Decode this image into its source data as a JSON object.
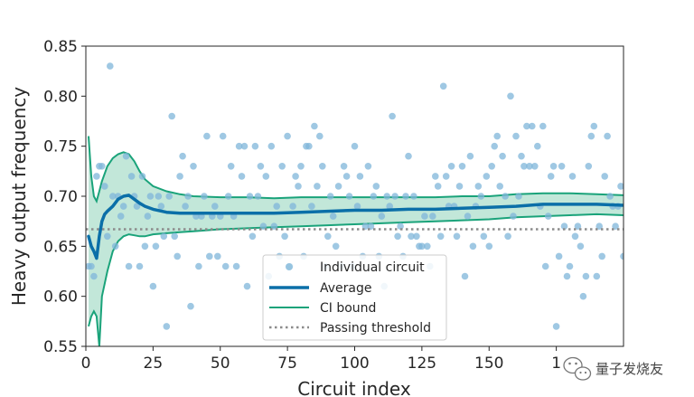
{
  "chart_data": {
    "type": "scatter",
    "xlabel": "Circuit index",
    "ylabel": "Heavy output frequency",
    "xlim": [
      0,
      200
    ],
    "ylim": [
      0.55,
      0.85
    ],
    "xticks": [
      "0",
      "25",
      "50",
      "75",
      "100",
      "125",
      "150",
      "1"
    ],
    "yticks": [
      "0.55",
      "0.60",
      "0.65",
      "0.70",
      "0.75",
      "0.80",
      "0.85"
    ],
    "grid": false,
    "legend_position": "bottom-center",
    "colors": {
      "points": "#7fb6d9",
      "average": "#0b6fa8",
      "ci": "#1aa37a",
      "ci_fill": "#b7e3d2",
      "threshold": "#8c8c8c"
    },
    "threshold": 0.667,
    "series": [
      {
        "name": "Individual circuit",
        "kind": "scatter",
        "points": [
          [
            1,
            0.63
          ],
          [
            2,
            0.63
          ],
          [
            3,
            0.62
          ],
          [
            4,
            0.72
          ],
          [
            5,
            0.73
          ],
          [
            6,
            0.73
          ],
          [
            7,
            0.71
          ],
          [
            8,
            0.66
          ],
          [
            9,
            0.83
          ],
          [
            10,
            0.7
          ],
          [
            11,
            0.65
          ],
          [
            12,
            0.7
          ],
          [
            13,
            0.68
          ],
          [
            14,
            0.69
          ],
          [
            15,
            0.74
          ],
          [
            16,
            0.63
          ],
          [
            17,
            0.72
          ],
          [
            18,
            0.7
          ],
          [
            19,
            0.69
          ],
          [
            20,
            0.63
          ],
          [
            21,
            0.72
          ],
          [
            22,
            0.65
          ],
          [
            23,
            0.68
          ],
          [
            24,
            0.7
          ],
          [
            25,
            0.61
          ],
          [
            26,
            0.65
          ],
          [
            27,
            0.7
          ],
          [
            28,
            0.69
          ],
          [
            29,
            0.66
          ],
          [
            30,
            0.57
          ],
          [
            31,
            0.7
          ],
          [
            32,
            0.78
          ],
          [
            33,
            0.66
          ],
          [
            34,
            0.64
          ],
          [
            35,
            0.72
          ],
          [
            36,
            0.74
          ],
          [
            37,
            0.69
          ],
          [
            38,
            0.7
          ],
          [
            39,
            0.59
          ],
          [
            40,
            0.73
          ],
          [
            41,
            0.68
          ],
          [
            42,
            0.63
          ],
          [
            43,
            0.68
          ],
          [
            44,
            0.7
          ],
          [
            45,
            0.76
          ],
          [
            46,
            0.64
          ],
          [
            47,
            0.68
          ],
          [
            48,
            0.69
          ],
          [
            49,
            0.64
          ],
          [
            50,
            0.68
          ],
          [
            51,
            0.76
          ],
          [
            52,
            0.63
          ],
          [
            53,
            0.7
          ],
          [
            54,
            0.73
          ],
          [
            55,
            0.68
          ],
          [
            56,
            0.63
          ],
          [
            57,
            0.75
          ],
          [
            58,
            0.72
          ],
          [
            59,
            0.75
          ],
          [
            60,
            0.61
          ],
          [
            61,
            0.7
          ],
          [
            62,
            0.66
          ],
          [
            63,
            0.75
          ],
          [
            64,
            0.7
          ],
          [
            65,
            0.73
          ],
          [
            66,
            0.67
          ],
          [
            67,
            0.72
          ],
          [
            68,
            0.62
          ],
          [
            69,
            0.75
          ],
          [
            70,
            0.67
          ],
          [
            71,
            0.69
          ],
          [
            72,
            0.64
          ],
          [
            73,
            0.73
          ],
          [
            74,
            0.66
          ],
          [
            75,
            0.76
          ],
          [
            76,
            0.63
          ],
          [
            77,
            0.69
          ],
          [
            78,
            0.72
          ],
          [
            79,
            0.71
          ],
          [
            80,
            0.73
          ],
          [
            81,
            0.64
          ],
          [
            82,
            0.75
          ],
          [
            83,
            0.75
          ],
          [
            84,
            0.69
          ],
          [
            85,
            0.77
          ],
          [
            86,
            0.71
          ],
          [
            87,
            0.76
          ],
          [
            88,
            0.73
          ],
          [
            89,
            0.63
          ],
          [
            90,
            0.66
          ],
          [
            91,
            0.7
          ],
          [
            92,
            0.68
          ],
          [
            93,
            0.65
          ],
          [
            94,
            0.71
          ],
          [
            95,
            0.63
          ],
          [
            96,
            0.73
          ],
          [
            97,
            0.72
          ],
          [
            98,
            0.7
          ],
          [
            99,
            0.63
          ],
          [
            100,
            0.75
          ],
          [
            101,
            0.69
          ],
          [
            102,
            0.72
          ],
          [
            103,
            0.64
          ],
          [
            104,
            0.67
          ],
          [
            105,
            0.73
          ],
          [
            106,
            0.67
          ],
          [
            107,
            0.7
          ],
          [
            108,
            0.71
          ],
          [
            109,
            0.64
          ],
          [
            110,
            0.68
          ],
          [
            111,
            0.61
          ],
          [
            112,
            0.7
          ],
          [
            113,
            0.69
          ],
          [
            114,
            0.78
          ],
          [
            115,
            0.7
          ],
          [
            116,
            0.66
          ],
          [
            117,
            0.67
          ],
          [
            118,
            0.64
          ],
          [
            119,
            0.7
          ],
          [
            120,
            0.74
          ],
          [
            121,
            0.66
          ],
          [
            122,
            0.7
          ],
          [
            123,
            0.66
          ],
          [
            124,
            0.65
          ],
          [
            125,
            0.65
          ],
          [
            126,
            0.68
          ],
          [
            127,
            0.65
          ],
          [
            128,
            0.63
          ],
          [
            129,
            0.68
          ],
          [
            130,
            0.72
          ],
          [
            131,
            0.71
          ],
          [
            132,
            0.66
          ],
          [
            133,
            0.81
          ],
          [
            134,
            0.72
          ],
          [
            135,
            0.69
          ],
          [
            136,
            0.73
          ],
          [
            137,
            0.69
          ],
          [
            138,
            0.66
          ],
          [
            139,
            0.71
          ],
          [
            140,
            0.73
          ],
          [
            141,
            0.62
          ],
          [
            142,
            0.68
          ],
          [
            143,
            0.74
          ],
          [
            144,
            0.65
          ],
          [
            145,
            0.69
          ],
          [
            146,
            0.71
          ],
          [
            147,
            0.7
          ],
          [
            148,
            0.66
          ],
          [
            149,
            0.72
          ],
          [
            150,
            0.65
          ],
          [
            151,
            0.73
          ],
          [
            152,
            0.75
          ],
          [
            153,
            0.76
          ],
          [
            154,
            0.71
          ],
          [
            155,
            0.74
          ],
          [
            156,
            0.7
          ],
          [
            157,
            0.66
          ],
          [
            158,
            0.8
          ],
          [
            159,
            0.68
          ],
          [
            160,
            0.76
          ],
          [
            161,
            0.7
          ],
          [
            162,
            0.74
          ],
          [
            163,
            0.73
          ],
          [
            164,
            0.77
          ],
          [
            165,
            0.73
          ],
          [
            166,
            0.77
          ],
          [
            167,
            0.73
          ],
          [
            168,
            0.75
          ],
          [
            169,
            0.69
          ],
          [
            170,
            0.77
          ],
          [
            171,
            0.63
          ],
          [
            172,
            0.68
          ],
          [
            173,
            0.72
          ],
          [
            174,
            0.73
          ],
          [
            175,
            0.57
          ],
          [
            176,
            0.64
          ],
          [
            177,
            0.73
          ],
          [
            178,
            0.67
          ],
          [
            179,
            0.62
          ],
          [
            180,
            0.63
          ],
          [
            181,
            0.72
          ],
          [
            182,
            0.66
          ],
          [
            183,
            0.67
          ],
          [
            184,
            0.65
          ],
          [
            185,
            0.6
          ],
          [
            186,
            0.62
          ],
          [
            187,
            0.73
          ],
          [
            188,
            0.76
          ],
          [
            189,
            0.77
          ],
          [
            190,
            0.62
          ],
          [
            191,
            0.67
          ],
          [
            192,
            0.64
          ],
          [
            193,
            0.72
          ],
          [
            194,
            0.76
          ],
          [
            195,
            0.7
          ],
          [
            196,
            0.69
          ],
          [
            197,
            0.67
          ],
          [
            198,
            0.69
          ],
          [
            199,
            0.71
          ],
          [
            200,
            0.64
          ]
        ]
      },
      {
        "name": "Average",
        "kind": "line",
        "points": [
          [
            1,
            0.66
          ],
          [
            2,
            0.65
          ],
          [
            3,
            0.645
          ],
          [
            4,
            0.638
          ],
          [
            5,
            0.66
          ],
          [
            6,
            0.675
          ],
          [
            7,
            0.682
          ],
          [
            8,
            0.685
          ],
          [
            10,
            0.69
          ],
          [
            12,
            0.697
          ],
          [
            14,
            0.7
          ],
          [
            16,
            0.701
          ],
          [
            18,
            0.697
          ],
          [
            20,
            0.693
          ],
          [
            22,
            0.69
          ],
          [
            25,
            0.687
          ],
          [
            30,
            0.684
          ],
          [
            35,
            0.683
          ],
          [
            40,
            0.683
          ],
          [
            50,
            0.683
          ],
          [
            60,
            0.683
          ],
          [
            70,
            0.683
          ],
          [
            80,
            0.684
          ],
          [
            90,
            0.685
          ],
          [
            100,
            0.686
          ],
          [
            110,
            0.686
          ],
          [
            120,
            0.687
          ],
          [
            130,
            0.687
          ],
          [
            140,
            0.688
          ],
          [
            150,
            0.689
          ],
          [
            160,
            0.69
          ],
          [
            170,
            0.692
          ],
          [
            180,
            0.692
          ],
          [
            190,
            0.692
          ],
          [
            200,
            0.691
          ]
        ]
      },
      {
        "name": "CI bound",
        "kind": "band",
        "upper": [
          [
            1,
            0.76
          ],
          [
            2,
            0.72
          ],
          [
            3,
            0.7
          ],
          [
            4,
            0.695
          ],
          [
            5,
            0.705
          ],
          [
            6,
            0.715
          ],
          [
            8,
            0.73
          ],
          [
            10,
            0.738
          ],
          [
            12,
            0.742
          ],
          [
            14,
            0.744
          ],
          [
            16,
            0.742
          ],
          [
            18,
            0.735
          ],
          [
            20,
            0.725
          ],
          [
            22,
            0.717
          ],
          [
            25,
            0.71
          ],
          [
            30,
            0.705
          ],
          [
            35,
            0.702
          ],
          [
            40,
            0.7
          ],
          [
            50,
            0.699
          ],
          [
            60,
            0.699
          ],
          [
            70,
            0.698
          ],
          [
            80,
            0.699
          ],
          [
            90,
            0.699
          ],
          [
            100,
            0.699
          ],
          [
            110,
            0.699
          ],
          [
            120,
            0.699
          ],
          [
            130,
            0.699
          ],
          [
            140,
            0.7
          ],
          [
            150,
            0.7
          ],
          [
            160,
            0.702
          ],
          [
            170,
            0.703
          ],
          [
            180,
            0.703
          ],
          [
            190,
            0.702
          ],
          [
            200,
            0.701
          ]
        ],
        "lower": [
          [
            1,
            0.57
          ],
          [
            2,
            0.58
          ],
          [
            3,
            0.585
          ],
          [
            4,
            0.58
          ],
          [
            5,
            0.55
          ],
          [
            6,
            0.6
          ],
          [
            8,
            0.625
          ],
          [
            10,
            0.645
          ],
          [
            12,
            0.655
          ],
          [
            14,
            0.66
          ],
          [
            16,
            0.662
          ],
          [
            18,
            0.661
          ],
          [
            20,
            0.66
          ],
          [
            22,
            0.66
          ],
          [
            25,
            0.662
          ],
          [
            30,
            0.663
          ],
          [
            35,
            0.664
          ],
          [
            40,
            0.665
          ],
          [
            50,
            0.667
          ],
          [
            60,
            0.668
          ],
          [
            70,
            0.669
          ],
          [
            80,
            0.67
          ],
          [
            90,
            0.671
          ],
          [
            100,
            0.672
          ],
          [
            110,
            0.673
          ],
          [
            120,
            0.674
          ],
          [
            130,
            0.675
          ],
          [
            140,
            0.676
          ],
          [
            150,
            0.677
          ],
          [
            160,
            0.679
          ],
          [
            170,
            0.68
          ],
          [
            180,
            0.681
          ],
          [
            190,
            0.682
          ],
          [
            200,
            0.681
          ]
        ]
      },
      {
        "name": "Passing threshold",
        "kind": "hline",
        "value": 0.667
      }
    ]
  },
  "watermark": {
    "text": "量子发烧友",
    "icon": "wechat-icon"
  }
}
